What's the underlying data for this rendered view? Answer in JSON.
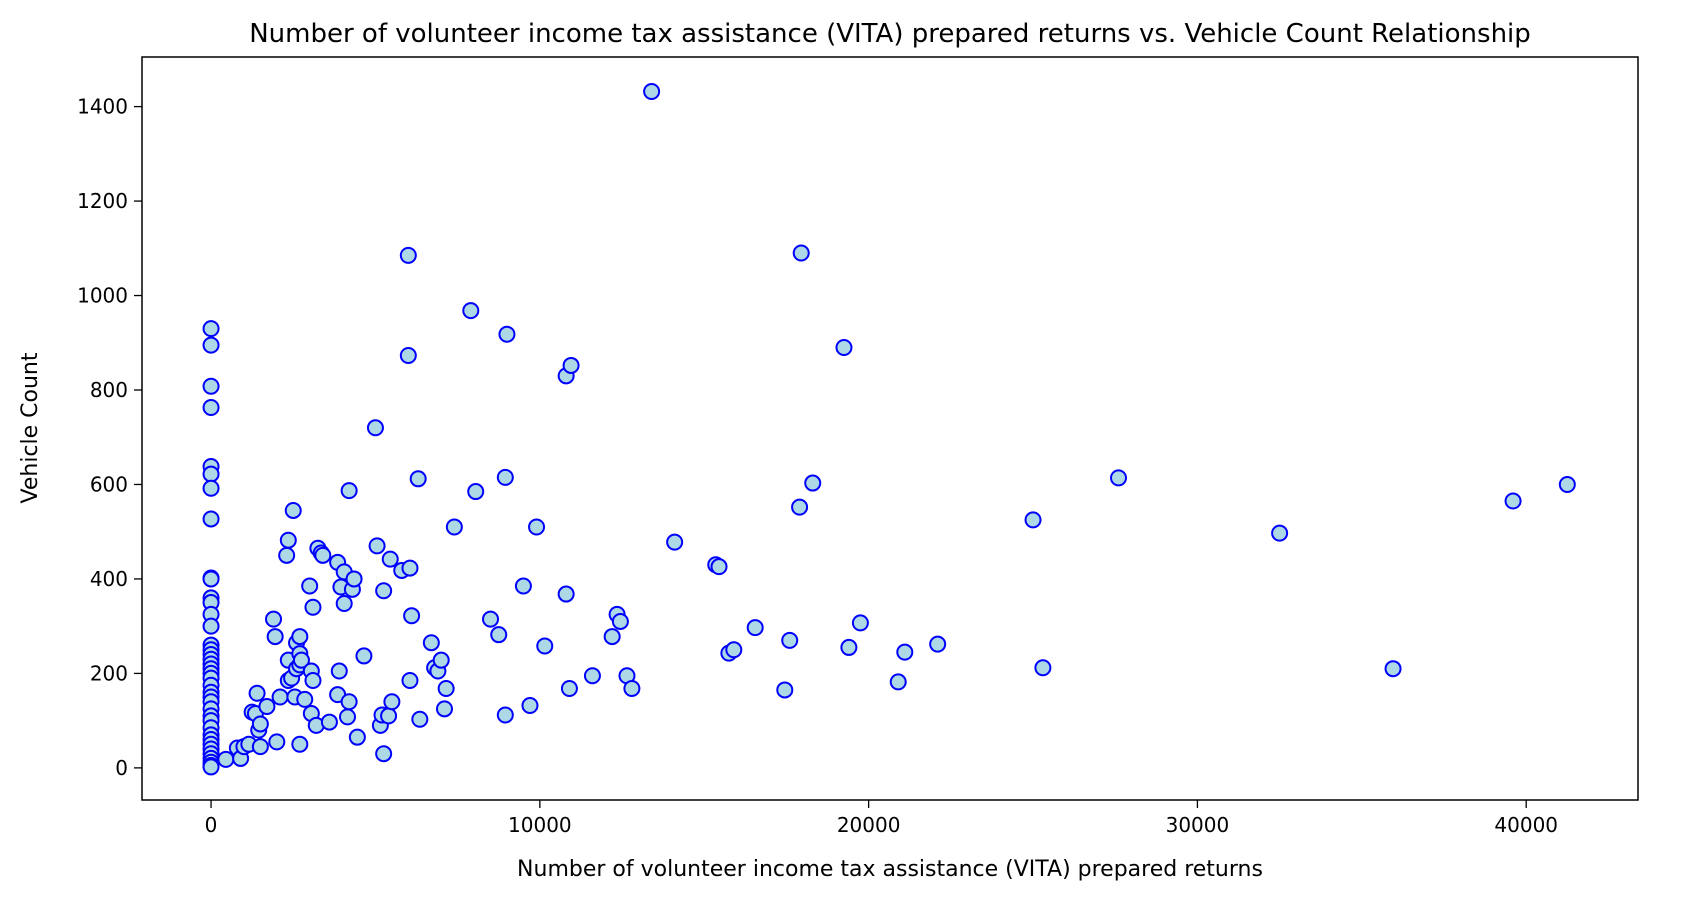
{
  "chart_data": {
    "type": "scatter",
    "title": "Number of volunteer income tax assistance (VITA) prepared returns vs. Vehicle Count Relationship",
    "xlabel": "Number of volunteer income tax assistance (VITA) prepared returns",
    "ylabel": "Vehicle Count",
    "xlim": [
      -2100,
      43400
    ],
    "ylim": [
      -68,
      1505
    ],
    "xticks": [
      0,
      10000,
      20000,
      30000,
      40000
    ],
    "yticks": [
      0,
      200,
      400,
      600,
      800,
      1000,
      1200,
      1400
    ],
    "grid": false,
    "marker_fill": "#add8e6",
    "marker_edge": "#0000ff",
    "points": [
      [
        0,
        930
      ],
      [
        0,
        895
      ],
      [
        0,
        808
      ],
      [
        0,
        763
      ],
      [
        0,
        638
      ],
      [
        0,
        622
      ],
      [
        0,
        592
      ],
      [
        0,
        527
      ],
      [
        0,
        402
      ],
      [
        0,
        400
      ],
      [
        0,
        360
      ],
      [
        0,
        350
      ],
      [
        0,
        325
      ],
      [
        0,
        300
      ],
      [
        0,
        260
      ],
      [
        0,
        250
      ],
      [
        0,
        240
      ],
      [
        0,
        230
      ],
      [
        0,
        220
      ],
      [
        0,
        210
      ],
      [
        0,
        200
      ],
      [
        0,
        190
      ],
      [
        0,
        175
      ],
      [
        0,
        160
      ],
      [
        0,
        150
      ],
      [
        0,
        140
      ],
      [
        0,
        125
      ],
      [
        0,
        110
      ],
      [
        0,
        100
      ],
      [
        0,
        85
      ],
      [
        0,
        70
      ],
      [
        0,
        60
      ],
      [
        0,
        50
      ],
      [
        0,
        40
      ],
      [
        0,
        30
      ],
      [
        0,
        20
      ],
      [
        0,
        12
      ],
      [
        0,
        5
      ],
      [
        0,
        2
      ],
      [
        450,
        18
      ],
      [
        800,
        42
      ],
      [
        900,
        20
      ],
      [
        1000,
        45
      ],
      [
        1150,
        50
      ],
      [
        1250,
        118
      ],
      [
        1350,
        115
      ],
      [
        1400,
        158
      ],
      [
        1450,
        80
      ],
      [
        1500,
        45
      ],
      [
        1500,
        93
      ],
      [
        1700,
        130
      ],
      [
        1900,
        315
      ],
      [
        1950,
        278
      ],
      [
        2000,
        55
      ],
      [
        2100,
        150
      ],
      [
        2300,
        450
      ],
      [
        2350,
        482
      ],
      [
        2350,
        185
      ],
      [
        2350,
        228
      ],
      [
        2450,
        190
      ],
      [
        2500,
        545
      ],
      [
        2550,
        150
      ],
      [
        2600,
        265
      ],
      [
        2600,
        210
      ],
      [
        2700,
        278
      ],
      [
        2700,
        242
      ],
      [
        2700,
        218
      ],
      [
        2700,
        50
      ],
      [
        2750,
        228
      ],
      [
        2850,
        145
      ],
      [
        3000,
        385
      ],
      [
        3050,
        205
      ],
      [
        3050,
        115
      ],
      [
        3100,
        185
      ],
      [
        3100,
        340
      ],
      [
        3200,
        90
      ],
      [
        3250,
        465
      ],
      [
        3350,
        455
      ],
      [
        3400,
        450
      ],
      [
        3600,
        97
      ],
      [
        3850,
        435
      ],
      [
        3850,
        155
      ],
      [
        3900,
        205
      ],
      [
        3950,
        383
      ],
      [
        4050,
        415
      ],
      [
        4050,
        348
      ],
      [
        4150,
        108
      ],
      [
        4200,
        140
      ],
      [
        4200,
        587
      ],
      [
        4300,
        378
      ],
      [
        4350,
        400
      ],
      [
        4450,
        65
      ],
      [
        4650,
        237
      ],
      [
        5000,
        720
      ],
      [
        5050,
        470
      ],
      [
        5150,
        90
      ],
      [
        5200,
        112
      ],
      [
        5250,
        375
      ],
      [
        5250,
        30
      ],
      [
        5400,
        110
      ],
      [
        5450,
        442
      ],
      [
        5500,
        140
      ],
      [
        5800,
        418
      ],
      [
        6000,
        1085
      ],
      [
        6000,
        873
      ],
      [
        6050,
        423
      ],
      [
        6050,
        185
      ],
      [
        6100,
        322
      ],
      [
        6300,
        612
      ],
      [
        6350,
        103
      ],
      [
        6700,
        265
      ],
      [
        6800,
        212
      ],
      [
        6900,
        205
      ],
      [
        7000,
        228
      ],
      [
        7100,
        125
      ],
      [
        7150,
        168
      ],
      [
        7400,
        510
      ],
      [
        7900,
        968
      ],
      [
        8050,
        585
      ],
      [
        8500,
        315
      ],
      [
        8750,
        282
      ],
      [
        8950,
        615
      ],
      [
        8950,
        112
      ],
      [
        9000,
        918
      ],
      [
        9500,
        385
      ],
      [
        9700,
        132
      ],
      [
        9900,
        510
      ],
      [
        10150,
        258
      ],
      [
        10800,
        368
      ],
      [
        10800,
        830
      ],
      [
        10900,
        168
      ],
      [
        10950,
        852
      ],
      [
        11600,
        195
      ],
      [
        12200,
        278
      ],
      [
        12350,
        325
      ],
      [
        12450,
        310
      ],
      [
        12650,
        195
      ],
      [
        12800,
        168
      ],
      [
        13400,
        1432
      ],
      [
        14100,
        478
      ],
      [
        15350,
        430
      ],
      [
        15450,
        426
      ],
      [
        15750,
        243
      ],
      [
        15900,
        250
      ],
      [
        16550,
        297
      ],
      [
        17450,
        165
      ],
      [
        17600,
        270
      ],
      [
        17900,
        552
      ],
      [
        17950,
        1090
      ],
      [
        18300,
        603
      ],
      [
        19250,
        890
      ],
      [
        19400,
        255
      ],
      [
        19750,
        307
      ],
      [
        20900,
        182
      ],
      [
        21100,
        245
      ],
      [
        22100,
        262
      ],
      [
        25000,
        525
      ],
      [
        25300,
        212
      ],
      [
        27600,
        614
      ],
      [
        32500,
        497
      ],
      [
        35950,
        210
      ],
      [
        39600,
        565
      ],
      [
        41250,
        600
      ]
    ]
  }
}
